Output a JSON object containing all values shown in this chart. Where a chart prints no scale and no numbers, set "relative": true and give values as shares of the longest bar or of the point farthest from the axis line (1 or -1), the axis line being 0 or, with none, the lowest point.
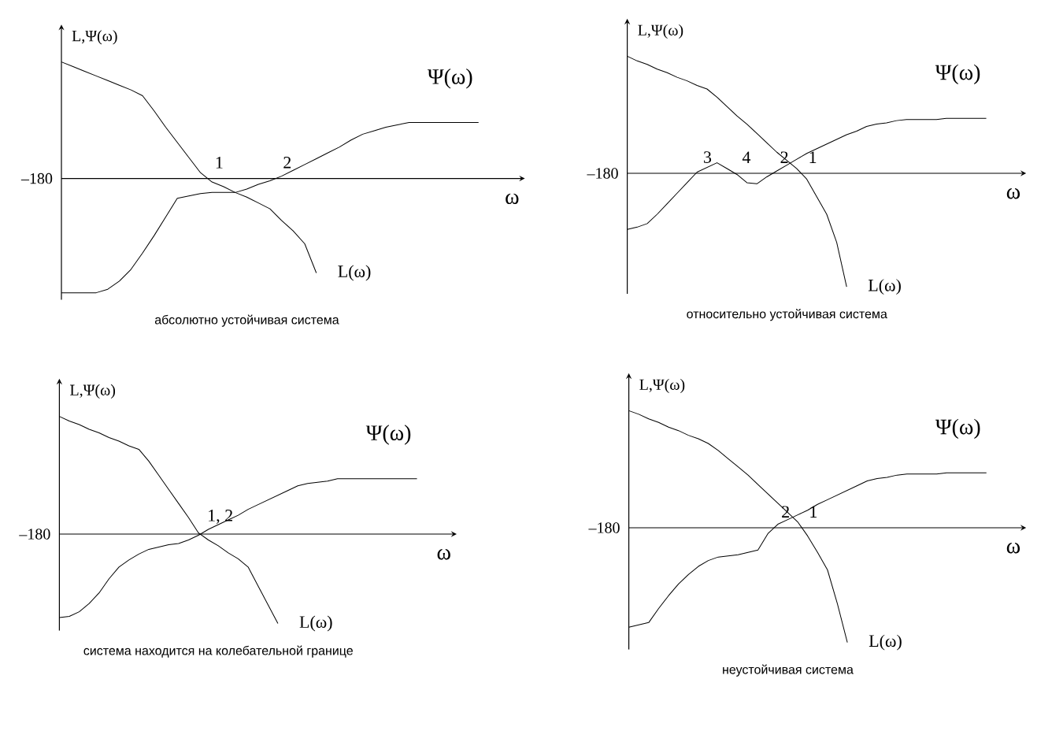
{
  "chart_data": [
    {
      "type": "line",
      "relative": true,
      "title": "абсолютно устойчивая система",
      "xlabel": "ω",
      "ylabel": "L,Ψ(ω)",
      "marker": "none",
      "line_style": "solid",
      "categories": [
        null,
        null,
        null,
        null,
        null,
        null,
        null,
        null,
        null,
        null,
        null,
        null,
        null,
        null,
        null,
        null,
        null,
        null,
        null,
        null,
        null,
        null,
        null,
        null,
        null,
        null,
        null,
        null,
        null,
        null,
        null,
        null,
        null,
        null,
        null,
        null,
        null
      ],
      "series": [
        {
          "name": "L(ω)",
          "color": "#000000",
          "values": [
            1.0,
            0.96,
            0.92,
            0.88,
            0.84,
            0.8,
            0.76,
            0.71,
            0.58,
            0.44,
            0.31,
            0.18,
            0.05,
            -0.03,
            -0.07,
            -0.12,
            -0.16,
            -0.21,
            -0.26,
            -0.36,
            -0.45,
            -0.56,
            -0.81,
            null,
            null,
            null,
            null,
            null,
            null,
            null,
            null,
            null,
            null,
            null,
            null,
            null,
            null
          ]
        },
        {
          "name": "Ψ(ω)",
          "color": "#000000",
          "values": [
            -0.98,
            -0.98,
            -0.98,
            -0.98,
            -0.95,
            -0.88,
            -0.78,
            -0.64,
            -0.49,
            -0.33,
            -0.17,
            -0.15,
            -0.13,
            -0.12,
            -0.12,
            -0.12,
            -0.09,
            -0.05,
            -0.02,
            0.02,
            0.07,
            0.12,
            0.17,
            0.22,
            0.27,
            0.33,
            0.38,
            0.41,
            0.44,
            0.46,
            0.48,
            0.48,
            0.48,
            0.48,
            0.48,
            0.48,
            0.48
          ]
        }
      ],
      "annotations": [
        "–180",
        "1",
        "2"
      ]
    },
    {
      "type": "line",
      "relative": true,
      "title": "относительно устойчивая система",
      "xlabel": "ω",
      "ylabel": "L,Ψ(ω)",
      "marker": "none",
      "line_style": "solid",
      "categories": [
        null,
        null,
        null,
        null,
        null,
        null,
        null,
        null,
        null,
        null,
        null,
        null,
        null,
        null,
        null,
        null,
        null,
        null,
        null,
        null,
        null,
        null,
        null,
        null,
        null,
        null,
        null,
        null,
        null,
        null,
        null,
        null,
        null,
        null,
        null,
        null,
        null
      ],
      "series": [
        {
          "name": "L(ω)",
          "color": "#000000",
          "values": [
            1.0,
            0.96,
            0.93,
            0.89,
            0.86,
            0.82,
            0.79,
            0.75,
            0.72,
            0.65,
            0.57,
            0.49,
            0.42,
            0.34,
            0.26,
            0.18,
            0.11,
            0.04,
            -0.05,
            -0.2,
            -0.35,
            -0.59,
            -0.97,
            null,
            null,
            null,
            null,
            null,
            null,
            null,
            null,
            null,
            null,
            null,
            null,
            null,
            null
          ]
        },
        {
          "name": "Ψ(ω)",
          "color": "#000000",
          "values": [
            -0.48,
            -0.46,
            -0.43,
            -0.35,
            -0.26,
            -0.17,
            -0.08,
            0.01,
            0.05,
            0.09,
            0.04,
            -0.01,
            -0.08,
            -0.09,
            -0.03,
            0.02,
            0.07,
            0.12,
            0.17,
            0.21,
            0.25,
            0.29,
            0.33,
            0.36,
            0.4,
            0.42,
            0.43,
            0.45,
            0.46,
            0.46,
            0.46,
            0.46,
            0.47,
            0.47,
            0.47,
            0.47,
            0.47
          ]
        }
      ],
      "annotations": [
        "–180",
        "3",
        "4",
        "2",
        "1"
      ]
    },
    {
      "type": "line",
      "relative": true,
      "title": "система находится на колебательной границе",
      "xlabel": "ω",
      "ylabel": "L,Ψ(ω)",
      "marker": "none",
      "line_style": "solid",
      "categories": [
        null,
        null,
        null,
        null,
        null,
        null,
        null,
        null,
        null,
        null,
        null,
        null,
        null,
        null,
        null,
        null,
        null,
        null,
        null,
        null,
        null,
        null,
        null,
        null,
        null,
        null,
        null,
        null,
        null,
        null,
        null,
        null,
        null,
        null,
        null,
        null,
        null
      ],
      "series": [
        {
          "name": "L(ω)",
          "color": "#000000",
          "values": [
            1.0,
            0.96,
            0.93,
            0.89,
            0.86,
            0.82,
            0.79,
            0.75,
            0.72,
            0.62,
            0.5,
            0.38,
            0.26,
            0.14,
            0.01,
            -0.05,
            -0.1,
            -0.16,
            -0.21,
            -0.28,
            -0.44,
            -0.6,
            -0.76,
            null,
            null,
            null,
            null,
            null,
            null,
            null,
            null,
            null,
            null,
            null,
            null,
            null,
            null
          ]
        },
        {
          "name": "Ψ(ω)",
          "color": "#000000",
          "values": [
            -0.71,
            -0.7,
            -0.66,
            -0.59,
            -0.5,
            -0.38,
            -0.28,
            -0.22,
            -0.17,
            -0.13,
            -0.11,
            -0.09,
            -0.08,
            -0.05,
            -0.01,
            0.04,
            0.08,
            0.12,
            0.16,
            0.21,
            0.25,
            0.29,
            0.33,
            0.37,
            0.41,
            0.43,
            0.44,
            0.45,
            0.47,
            0.47,
            0.47,
            0.47,
            0.47,
            0.47,
            0.47,
            0.47,
            0.47
          ]
        }
      ],
      "annotations": [
        "–180",
        "1, 2"
      ]
    },
    {
      "type": "line",
      "relative": true,
      "title": "неустойчивая система",
      "xlabel": "ω",
      "ylabel": "L,Ψ(ω)",
      "marker": "none",
      "line_style": "solid",
      "categories": [
        null,
        null,
        null,
        null,
        null,
        null,
        null,
        null,
        null,
        null,
        null,
        null,
        null,
        null,
        null,
        null,
        null,
        null,
        null,
        null,
        null,
        null,
        null,
        null,
        null,
        null,
        null,
        null,
        null,
        null,
        null,
        null,
        null,
        null,
        null,
        null,
        null
      ],
      "series": [
        {
          "name": "L(ω)",
          "color": "#000000",
          "values": [
            1.0,
            0.97,
            0.93,
            0.9,
            0.86,
            0.83,
            0.79,
            0.76,
            0.72,
            0.66,
            0.59,
            0.52,
            0.45,
            0.37,
            0.29,
            0.21,
            0.13,
            0.05,
            -0.07,
            -0.21,
            -0.36,
            -0.65,
            -0.98,
            null,
            null,
            null,
            null,
            null,
            null,
            null,
            null,
            null,
            null,
            null,
            null,
            null,
            null
          ]
        },
        {
          "name": "Ψ(ω)",
          "color": "#000000",
          "values": [
            -0.85,
            -0.83,
            -0.81,
            -0.69,
            -0.58,
            -0.48,
            -0.4,
            -0.33,
            -0.28,
            -0.25,
            -0.24,
            -0.23,
            -0.21,
            -0.19,
            -0.05,
            0.03,
            0.07,
            0.11,
            0.15,
            0.2,
            0.24,
            0.28,
            0.32,
            0.36,
            0.4,
            0.42,
            0.43,
            0.45,
            0.46,
            0.46,
            0.46,
            0.46,
            0.47,
            0.47,
            0.47,
            0.47,
            0.47
          ]
        }
      ],
      "annotations": [
        "–180",
        "2",
        "1"
      ]
    }
  ]
}
